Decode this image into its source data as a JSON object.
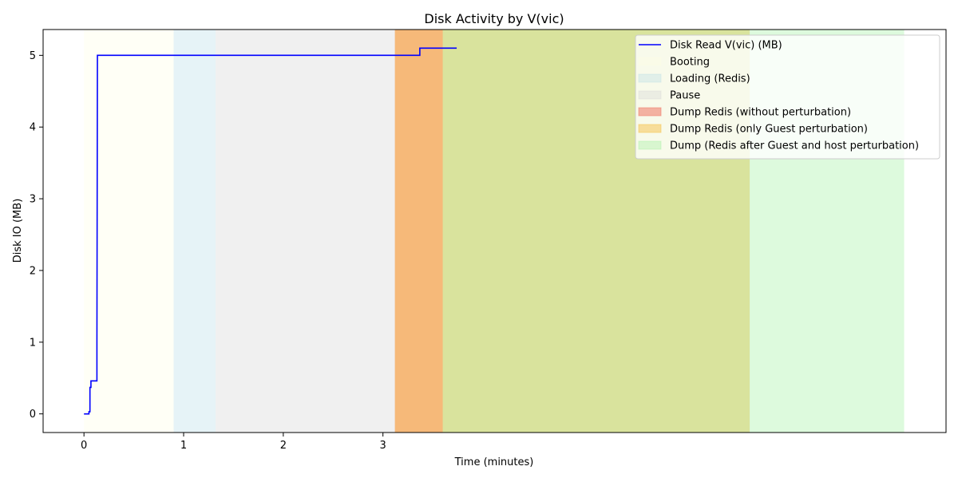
{
  "chart_data": {
    "type": "line",
    "title": "Disk Activity by V(vic)",
    "xlabel": "Time (minutes)",
    "ylabel": "Disk IO (MB)",
    "xlim": [
      -0.41,
      8.65
    ],
    "ylim": [
      -0.26,
      5.36
    ],
    "xticks": [
      0,
      1,
      2,
      3
    ],
    "yticks": [
      0,
      1,
      2,
      3,
      4,
      5
    ],
    "grid": false,
    "legend_position": "top-right",
    "series": [
      {
        "name": "Disk Read V(vic) (MB)",
        "color": "#0000ff",
        "points": [
          [
            0.0,
            0.0
          ],
          [
            0.05,
            0.0
          ],
          [
            0.05,
            0.03
          ],
          [
            0.06,
            0.03
          ],
          [
            0.06,
            0.37
          ],
          [
            0.07,
            0.37
          ],
          [
            0.07,
            0.46
          ],
          [
            0.13,
            0.46
          ],
          [
            0.13,
            1.0
          ],
          [
            0.135,
            5.0
          ],
          [
            3.37,
            5.0
          ],
          [
            3.37,
            5.1
          ],
          [
            3.74,
            5.1
          ]
        ]
      }
    ],
    "spans": [
      {
        "label": "Booting",
        "start": 0.0,
        "end": 0.9,
        "color": "#ffffe0",
        "alpha": 0.3
      },
      {
        "label": "Loading (Redis)",
        "start": 0.9,
        "end": 1.32,
        "color": "#add8e6",
        "alpha": 0.3
      },
      {
        "label": "Pause",
        "start": 1.32,
        "end": 3.12,
        "color": "#d3d3d3",
        "alpha": 0.35
      },
      {
        "label": "Dump Redis (without perturbation)",
        "start": 3.12,
        "end": 3.6,
        "color": "#f08070",
        "alpha": 0.6
      },
      {
        "label": "Dump Redis (only Guest perturbation)",
        "start": 3.12,
        "end": 6.68,
        "color": "#f5c04a",
        "alpha": 0.5
      },
      {
        "label": "Dump (Redis after Guest and host perturbation)",
        "start": 3.6,
        "end": 8.23,
        "color": "#90ee90",
        "alpha": 0.3
      }
    ]
  }
}
